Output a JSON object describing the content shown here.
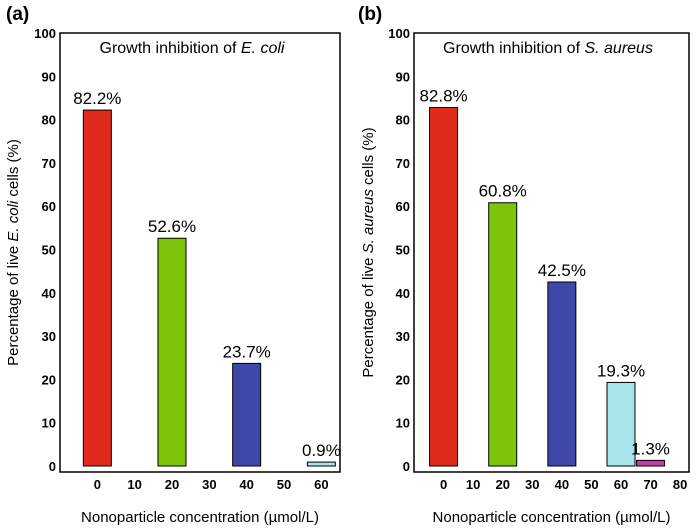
{
  "chart_data": [
    {
      "type": "bar",
      "panel_label": "(a)",
      "title_prefix": "Growth inhibition of ",
      "title_italic": "E. coli",
      "xlabel": "Nonoparticle concentration (µmol/L)",
      "ylabel_prefix": "Percentage of live ",
      "ylabel_italic": "E. coli",
      "ylabel_suffix": "  cells (%)",
      "xlim": [
        -10,
        65
      ],
      "xticks": [
        0,
        10,
        20,
        30,
        40,
        50,
        60
      ],
      "ylim": [
        0,
        100
      ],
      "yticks": [
        0,
        10,
        20,
        30,
        40,
        50,
        60,
        70,
        80,
        90,
        100
      ],
      "bars": [
        {
          "x": 0,
          "value": 82.2,
          "label": "82.2%",
          "color": "#e02a1a"
        },
        {
          "x": 20,
          "value": 52.6,
          "label": "52.6%",
          "color": "#7ec40a"
        },
        {
          "x": 40,
          "value": 23.7,
          "label": "23.7%",
          "color": "#3f47a8"
        },
        {
          "x": 60,
          "value": 0.9,
          "label": "0.9%",
          "color": "#a8e4ec"
        }
      ]
    },
    {
      "type": "bar",
      "panel_label": "(b)",
      "title_prefix": "Growth inhibition of ",
      "title_italic": "S. aureus",
      "xlabel": "Nonoparticle concentration (µmol/L)",
      "ylabel_prefix": "Percentage of live ",
      "ylabel_italic": "S. aureus",
      "ylabel_suffix": " cells (%)",
      "xlim": [
        -10,
        83
      ],
      "xticks": [
        0,
        10,
        20,
        30,
        40,
        50,
        60,
        70,
        80
      ],
      "ylim": [
        0,
        100
      ],
      "yticks": [
        0,
        10,
        20,
        30,
        40,
        50,
        60,
        70,
        80,
        90,
        100
      ],
      "bars": [
        {
          "x": 0,
          "value": 82.8,
          "label": "82.8%",
          "color": "#e02a1a"
        },
        {
          "x": 20,
          "value": 60.8,
          "label": "60.8%",
          "color": "#7ec40a"
        },
        {
          "x": 40,
          "value": 42.5,
          "label": "42.5%",
          "color": "#3f47a8"
        },
        {
          "x": 60,
          "value": 19.3,
          "label": "19.3%",
          "color": "#a8e4ec"
        },
        {
          "x": 70,
          "value": 1.3,
          "label": "1.3%",
          "color": "#c43ea6"
        }
      ]
    }
  ]
}
